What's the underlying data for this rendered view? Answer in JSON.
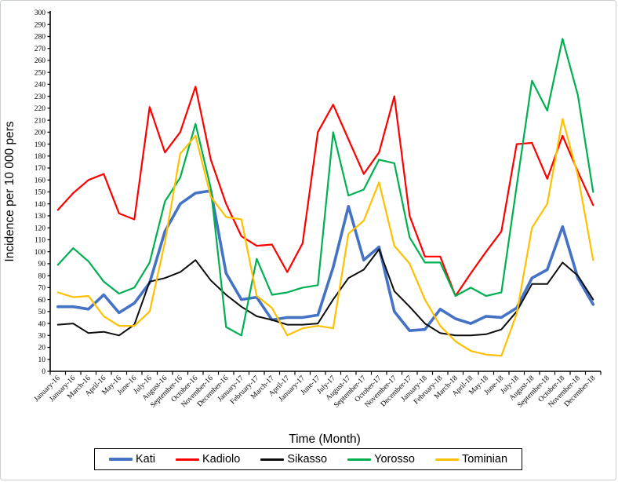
{
  "figure": {
    "background": "#ffffff",
    "border_color": "#c9ced3",
    "axis_color": "#000000"
  },
  "chart_data": {
    "type": "line",
    "title": "",
    "ylabel": "Incidence per 10 000 pers",
    "xlabel": "Time (Month)",
    "ylim": [
      0,
      300
    ],
    "ytick_step": 10,
    "grid": false,
    "legend_position": "bottom",
    "categories": [
      "January-16",
      "January-16",
      "March-16",
      "April-16",
      "May-16",
      "June-16",
      "July-16",
      "August-16",
      "September-16",
      "October-16",
      "November-16",
      "December-16",
      "January-17",
      "February-17",
      "March-17",
      "April-17",
      "January-17",
      "June-17",
      "July-17",
      "August-17",
      "September-17",
      "October-17",
      "November-17",
      "December-17",
      "January-18",
      "February-18",
      "March-18",
      "April-18",
      "May-18",
      "June-18",
      "July-18",
      "August-18",
      "September-18",
      "October-18",
      "November-18",
      "December-18"
    ],
    "series": [
      {
        "name": "Kati",
        "color": "#4472C4",
        "line_width": 3.6,
        "values": [
          54,
          54,
          52,
          64,
          49,
          57,
          74,
          117,
          140,
          149,
          151,
          82,
          60,
          62,
          43,
          45,
          45,
          47,
          87,
          138,
          93,
          104,
          50,
          34,
          35,
          52,
          44,
          40,
          46,
          45,
          53,
          78,
          85,
          121,
          78,
          56
        ]
      },
      {
        "name": "Kadiolo",
        "color": "#FF0000",
        "line_width": 2.2,
        "values": [
          135,
          149,
          160,
          165,
          132,
          127,
          221,
          183,
          200,
          238,
          177,
          140,
          113,
          105,
          106,
          83,
          107,
          200,
          223,
          194,
          165,
          183,
          230,
          130,
          96,
          96,
          63,
          82,
          100,
          117,
          190,
          191,
          161,
          197,
          167,
          139
        ]
      },
      {
        "name": "Sikasso",
        "color": "#0d0d0d",
        "line_width": 2.0,
        "values": [
          39,
          40,
          32,
          33,
          30,
          39,
          75,
          78,
          83,
          93,
          76,
          64,
          54,
          46,
          43,
          39,
          39,
          40,
          60,
          78,
          85,
          102,
          67,
          54,
          40,
          32,
          30,
          30,
          31,
          35,
          50,
          73,
          73,
          91,
          80,
          60
        ]
      },
      {
        "name": "Yorosso",
        "color": "#00B050",
        "line_width": 2.2,
        "values": [
          89,
          103,
          92,
          75,
          65,
          70,
          91,
          142,
          162,
          207,
          153,
          37,
          30,
          94,
          64,
          66,
          70,
          72,
          200,
          147,
          152,
          177,
          174,
          112,
          91,
          91,
          63,
          70,
          63,
          66,
          155,
          243,
          218,
          278,
          231,
          150
        ]
      },
      {
        "name": "Tominian",
        "color": "#FFC000",
        "line_width": 2.2,
        "values": [
          66,
          62,
          63,
          46,
          38,
          38,
          50,
          108,
          182,
          197,
          146,
          129,
          127,
          63,
          53,
          30,
          36,
          38,
          36,
          115,
          126,
          158,
          105,
          90,
          60,
          38,
          25,
          17,
          14,
          13,
          48,
          120,
          140,
          211,
          164,
          93
        ]
      }
    ]
  }
}
